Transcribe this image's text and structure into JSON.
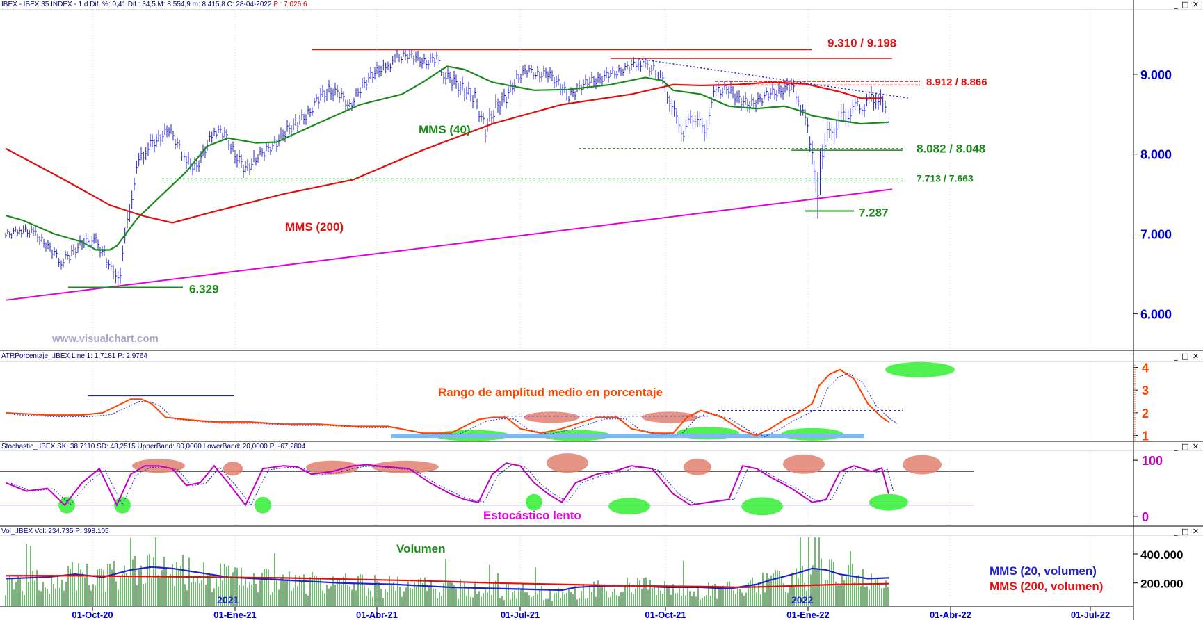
{
  "headers": {
    "price": {
      "main": "IBEX - IBEX 35 INDEX - 1 d Dif. %: 0,41 Dif.: 34,5 M: 8.554,9 m: 8.415,8 C: 28-04-2022",
      "extra": "P : 7.026,6"
    },
    "atr": {
      "main": "ATRPorcentaje_.IBEX Line 1: 1,7181 P: 2,9764"
    },
    "stoch": {
      "main": "Stochastic_.IBEX SK: 38,7110 SD: 48,2515 UpperBand: 80,0000 LowerBand: 20,0000 P: -67,2804"
    },
    "vol": {
      "main": "Vol_.IBEX Vol: 234.735 P: 398.105"
    }
  },
  "window_buttons": "_ □ ✕",
  "colors": {
    "price_bars": "#2020cc",
    "mms40": "#1a8a1a",
    "mms200": "#e01010",
    "trend": "#e000e0",
    "stoch": "#c000c0",
    "atr": "#ff4400",
    "axis_text": "#0000cc"
  },
  "chart_data": [
    {
      "type": "line",
      "panel": "price",
      "x_ticks": [
        "01-Oct-20",
        "01-Ene-21",
        "01-Abr-21",
        "01-Jul-21",
        "01-Oct-21",
        "01-Ene-22",
        "01-Abr-22",
        "01-Jul-22"
      ],
      "y_ticks": [
        "6.000",
        "7.000",
        "8.000",
        "9.000"
      ],
      "ylim": [
        5550,
        9800
      ],
      "series": [
        {
          "name": "MMS (40)",
          "x": [
            0,
            25,
            70,
            110,
            130,
            150,
            160,
            190,
            260,
            290,
            320,
            360,
            390,
            440,
            510,
            570,
            600,
            635,
            660,
            700,
            760,
            810,
            870,
            920,
            945,
            960,
            1000,
            1040,
            1080,
            1120,
            1140,
            1160,
            1200,
            1230,
            1270
          ],
          "values": [
            7230,
            7170,
            7000,
            6900,
            6800,
            6800,
            6850,
            7200,
            7780,
            8100,
            8200,
            8140,
            8150,
            8350,
            8620,
            8750,
            8900,
            9100,
            9060,
            8900,
            8800,
            8810,
            8870,
            8960,
            8920,
            8800,
            8750,
            8600,
            8570,
            8600,
            8550,
            8480,
            8420,
            8380,
            8400
          ]
        },
        {
          "name": "MMS (200)",
          "x": [
            0,
            80,
            150,
            200,
            240,
            300,
            400,
            500,
            600,
            700,
            800,
            900,
            960,
            1000,
            1050,
            1100,
            1150,
            1200,
            1230,
            1260
          ],
          "values": [
            8070,
            7700,
            7360,
            7220,
            7140,
            7280,
            7500,
            7680,
            8050,
            8380,
            8620,
            8750,
            8870,
            8860,
            8870,
            8900,
            8880,
            8780,
            8700,
            8700
          ]
        },
        {
          "name": "",
          "x": [
            0,
            1275
          ],
          "values": [
            6170,
            7560
          ]
        },
        {
          "name": "",
          "x": [
            905,
            1300
          ],
          "values": [
            9200,
            8700
          ]
        }
      ],
      "price_bars": {
        "x": [
          0,
          20,
          40,
          55,
          70,
          80,
          95,
          110,
          130,
          145,
          155,
          165,
          175,
          185,
          195,
          205,
          220,
          235,
          250,
          260,
          275,
          290,
          300,
          315,
          330,
          345,
          360,
          375,
          390,
          405,
          420,
          435,
          450,
          465,
          480,
          495,
          510,
          525,
          540,
          550,
          560,
          575,
          590,
          605,
          620,
          630,
          645,
          660,
          675,
          690,
          705,
          720,
          735,
          750,
          765,
          780,
          795,
          810,
          825,
          840,
          855,
          870,
          885,
          900,
          910,
          920,
          935,
          945,
          955,
          965,
          975,
          985,
          995,
          1005,
          1015,
          1025,
          1040,
          1055,
          1070,
          1085,
          1100,
          1115,
          1130,
          1140,
          1150,
          1160,
          1168,
          1175,
          1185,
          1195,
          1205,
          1215,
          1225,
          1235,
          1245,
          1255,
          1265,
          1270
        ],
        "values": [
          6980,
          7050,
          7020,
          6900,
          6750,
          6650,
          6750,
          6900,
          6900,
          6700,
          6450,
          6550,
          7100,
          7700,
          7950,
          8100,
          8200,
          8300,
          8100,
          7900,
          7850,
          8100,
          8300,
          8250,
          8000,
          7800,
          7950,
          8050,
          8150,
          8300,
          8400,
          8500,
          8700,
          8800,
          8750,
          8600,
          8800,
          9000,
          9050,
          9100,
          9200,
          9250,
          9200,
          9150,
          9200,
          9000,
          8900,
          8800,
          8700,
          8300,
          8600,
          8700,
          8950,
          9050,
          9000,
          9000,
          8900,
          8700,
          8850,
          8900,
          8950,
          9000,
          9050,
          9100,
          9150,
          9100,
          9050,
          8900,
          8700,
          8400,
          8300,
          8400,
          8500,
          8200,
          8700,
          8800,
          8800,
          8700,
          8600,
          8700,
          8750,
          8800,
          8850,
          8700,
          8400,
          8100,
          7300,
          8100,
          8200,
          8400,
          8450,
          8550,
          8600,
          8600,
          8700,
          8700,
          8550,
          8450
        ],
        "ranges": [
          110,
          120,
          110,
          120,
          150,
          150,
          140,
          130,
          150,
          180,
          200,
          200,
          250,
          250,
          200,
          170,
          150,
          160,
          170,
          170,
          150,
          160,
          160,
          150,
          170,
          160,
          150,
          140,
          150,
          150,
          160,
          160,
          170,
          160,
          150,
          160,
          160,
          150,
          140,
          150,
          140,
          130,
          130,
          140,
          150,
          170,
          180,
          180,
          200,
          210,
          180,
          160,
          150,
          140,
          140,
          140,
          160,
          170,
          150,
          140,
          140,
          130,
          130,
          130,
          140,
          150,
          160,
          170,
          200,
          220,
          220,
          200,
          200,
          220,
          200,
          170,
          160,
          160,
          170,
          170,
          160,
          160,
          170,
          200,
          250,
          300,
          600,
          400,
          300,
          250,
          220,
          200,
          190,
          190,
          200,
          210,
          220,
          220
        ]
      },
      "levels": [
        {
          "label": "9.310 / 9.198",
          "x": [
            440,
            1160
          ],
          "value": 9310
        },
        {
          "label": "8.912 / 8.866",
          "x": [
            1020,
            1315
          ],
          "value": 8912
        },
        {
          "label": "8.082 / 8.048",
          "x": [
            825,
            1290
          ],
          "value": 8070
        },
        {
          "label": "7.713 / 7.663",
          "x": [
            225,
            1290
          ],
          "value": 7690
        },
        {
          "label": "7.287",
          "x": [
            1150,
            1220
          ],
          "value": 7287
        },
        {
          "label": "6.329",
          "x": [
            90,
            255
          ],
          "value": 6329
        }
      ],
      "annotations": [
        "MMS (40)",
        "MMS (200)",
        "www.visualchart.com"
      ]
    },
    {
      "type": "line",
      "panel": "atr",
      "y_ticks": [
        "1",
        "2",
        "3",
        "4"
      ],
      "ylim": [
        0.8,
        4.2
      ],
      "series": [
        {
          "name": "",
          "x": [
            0,
            60,
            110,
            140,
            160,
            180,
            195,
            210,
            230,
            260,
            300,
            350,
            400,
            450,
            500,
            550,
            600,
            640,
            680,
            700,
            720,
            740,
            770,
            800,
            850,
            880,
            900,
            930,
            960,
            980,
            1000,
            1030,
            1060,
            1080,
            1100,
            1120,
            1140,
            1160,
            1170,
            1185,
            1200,
            1220,
            1240,
            1260,
            1270
          ],
          "values": [
            2.0,
            1.9,
            1.9,
            2.0,
            2.3,
            2.6,
            2.6,
            2.4,
            1.8,
            1.7,
            1.6,
            1.6,
            1.5,
            1.5,
            1.4,
            1.4,
            1.1,
            1.1,
            1.7,
            1.8,
            1.8,
            1.3,
            1.1,
            1.3,
            1.8,
            1.8,
            1.3,
            1.1,
            1.1,
            1.8,
            2.1,
            1.8,
            1.2,
            1.0,
            1.3,
            1.7,
            2.0,
            2.4,
            3.2,
            3.7,
            3.9,
            3.5,
            2.4,
            1.8,
            1.6
          ]
        }
      ],
      "annotations": [
        "Rango de amplitud medio en porcentaje"
      ]
    },
    {
      "type": "line",
      "panel": "stochastic",
      "y_ticks": [
        "0",
        "100"
      ],
      "ylim": [
        -15,
        115
      ],
      "series": [
        {
          "name": "",
          "x": [
            0,
            30,
            60,
            85,
            110,
            135,
            160,
            180,
            200,
            220,
            240,
            260,
            280,
            300,
            320,
            345,
            370,
            400,
            420,
            440,
            470,
            500,
            520,
            550,
            580,
            610,
            640,
            660,
            680,
            700,
            720,
            740,
            760,
            780,
            800,
            820,
            850,
            880,
            900,
            930,
            960,
            985,
            1010,
            1040,
            1060,
            1080,
            1100,
            1130,
            1160,
            1180,
            1200,
            1220,
            1245,
            1260,
            1270
          ],
          "values": [
            60,
            45,
            50,
            20,
            60,
            85,
            20,
            75,
            90,
            90,
            85,
            55,
            60,
            90,
            60,
            20,
            85,
            90,
            88,
            75,
            80,
            90,
            92,
            88,
            85,
            60,
            40,
            30,
            25,
            75,
            95,
            90,
            60,
            40,
            25,
            60,
            75,
            82,
            90,
            85,
            40,
            20,
            25,
            30,
            90,
            85,
            70,
            50,
            25,
            30,
            80,
            90,
            80,
            86,
            40
          ]
        }
      ],
      "annotations": [
        "Estocástico lento"
      ]
    },
    {
      "type": "bar",
      "panel": "volume",
      "y_ticks": [
        "200.000",
        "400.000"
      ],
      "ylim": [
        40000,
        520000
      ],
      "series": [
        {
          "name": "MMS (20, volumen)",
          "x": [
            0,
            60,
            100,
            140,
            180,
            210,
            240,
            280,
            320,
            400,
            480,
            560,
            640,
            720,
            800,
            820,
            860,
            900,
            950,
            1000,
            1040,
            1080,
            1100,
            1140,
            1160,
            1180,
            1200,
            1240,
            1270
          ],
          "values": [
            230000,
            240000,
            260000,
            240000,
            290000,
            310000,
            300000,
            270000,
            240000,
            220000,
            200000,
            190000,
            170000,
            160000,
            150000,
            170000,
            180000,
            180000,
            170000,
            170000,
            160000,
            190000,
            220000,
            270000,
            300000,
            290000,
            260000,
            230000,
            235000
          ]
        },
        {
          "name": "MMS (200, volumen)",
          "x": [
            0,
            100,
            200,
            300,
            400,
            500,
            600,
            700,
            800,
            900,
            1000,
            1060,
            1100,
            1200,
            1270
          ],
          "values": [
            250000,
            250000,
            245000,
            240000,
            235000,
            225000,
            215000,
            200000,
            190000,
            180000,
            175000,
            170000,
            175000,
            190000,
            195000
          ]
        }
      ],
      "annotations": [
        "Volumen",
        "2021",
        "2022"
      ]
    }
  ]
}
